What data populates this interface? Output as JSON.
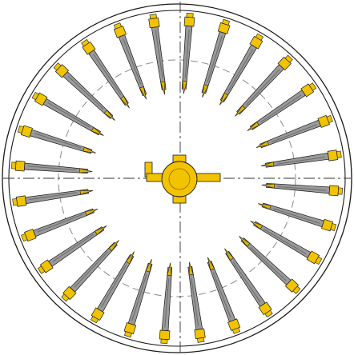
{
  "diagram": {
    "type": "radial mechanical assembly (technical drawing)",
    "spoke_count": 28,
    "colors": {
      "background": "#ffffff",
      "outline": "#1a1a1a",
      "spoke_body": "#9a9a9a",
      "spoke_shading": "#6e6e6e",
      "spoke_fitting": "#f2c300",
      "spoke_tip": "#e0b400",
      "hub": "#f2c300",
      "centerline": "#333333",
      "dashed_circle": "#8a8a8a"
    },
    "components": [
      "outer-ring",
      "inner-ring",
      "spokes",
      "center-hub",
      "centerlines",
      "dashed-bolt-circle"
    ]
  }
}
